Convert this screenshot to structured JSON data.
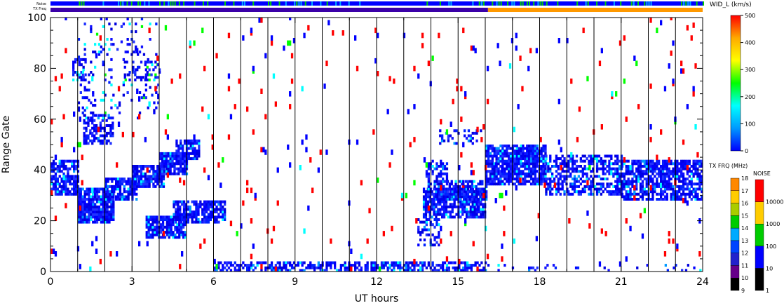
{
  "chart_data": {
    "type": "heatmap",
    "title": "",
    "xlabel": "UT hours",
    "ylabel": "Range Gate",
    "xlim": [
      0,
      24
    ],
    "ylim": [
      0,
      100
    ],
    "x_ticks": [
      "0",
      "3",
      "6",
      "9",
      "12",
      "15",
      "18",
      "21",
      "24"
    ],
    "y_ticks": [
      "0",
      "20",
      "40",
      "60",
      "80",
      "100"
    ],
    "vertical_gridlines_hours": [
      1,
      2,
      3,
      4,
      5,
      6,
      7,
      8,
      9,
      10,
      11,
      12,
      13,
      14,
      15,
      16,
      17,
      18,
      19,
      20,
      21,
      22,
      23
    ],
    "top_bars": {
      "noise_label": "Noise",
      "txfreq_label": "TX Freq",
      "txfreq_segments": [
        {
          "start": 0,
          "end": 16.1,
          "color": "#3a00a8"
        },
        {
          "start": 16.1,
          "end": 24,
          "color": "#ff9900"
        }
      ]
    },
    "main_colorbar": {
      "title": "WID_L (km/s)",
      "range": [
        0,
        500
      ],
      "ticks": [
        "0",
        "100",
        "200",
        "300",
        "400",
        "500"
      ],
      "stops": [
        "#0000ff",
        "#0099ff",
        "#00ffff",
        "#00ff00",
        "#ffff00",
        "#ffaa00",
        "#ff0000"
      ]
    },
    "txfreq_colorbar": {
      "title": "TX FRQ (MHz)",
      "ticks": [
        "9",
        "10",
        "11",
        "12",
        "13",
        "14",
        "15",
        "16",
        "17",
        "18"
      ],
      "colors": [
        "#000000",
        "#66008a",
        "#2222cc",
        "#0044ff",
        "#00aaff",
        "#00cc00",
        "#aacc00",
        "#ffcc00",
        "#ff8800",
        "#ff0000"
      ]
    },
    "noise_colorbar": {
      "title": "NOISE",
      "ticks": [
        "1",
        "10",
        "100",
        "1000",
        "10000"
      ],
      "colors": [
        "#000000",
        "#0000ff",
        "#00cc00",
        "#ffcc00",
        "#ff0000"
      ]
    },
    "bands": [
      {
        "t0": 0.0,
        "t1": 1.0,
        "g0": 30,
        "g1": 44,
        "density": 0.75
      },
      {
        "t0": 0.8,
        "t1": 1.3,
        "g0": 75,
        "g1": 84,
        "density": 0.4
      },
      {
        "t0": 1.0,
        "t1": 2.3,
        "g0": 19,
        "g1": 33,
        "density": 0.85
      },
      {
        "t0": 2.0,
        "t1": 3.2,
        "g0": 28,
        "g1": 37,
        "density": 0.8
      },
      {
        "t0": 1.2,
        "t1": 2.3,
        "g0": 50,
        "g1": 62,
        "density": 0.55
      },
      {
        "t0": 3.0,
        "t1": 4.2,
        "g0": 33,
        "g1": 42,
        "density": 0.85
      },
      {
        "t0": 4.0,
        "t1": 5.0,
        "g0": 38,
        "g1": 47,
        "density": 0.8
      },
      {
        "t0": 4.6,
        "t1": 5.5,
        "g0": 44,
        "g1": 52,
        "density": 0.7
      },
      {
        "t0": 2.7,
        "t1": 4.0,
        "g0": 75,
        "g1": 83,
        "density": 0.3
      },
      {
        "t0": 3.5,
        "t1": 5.0,
        "g0": 13,
        "g1": 22,
        "density": 0.8
      },
      {
        "t0": 4.5,
        "t1": 6.4,
        "g0": 19,
        "g1": 28,
        "density": 0.75
      },
      {
        "t0": 13.7,
        "t1": 16.0,
        "g0": 21,
        "g1": 33,
        "density": 0.8
      },
      {
        "t0": 14.2,
        "t1": 16.0,
        "g0": 28,
        "g1": 36,
        "density": 0.6
      },
      {
        "t0": 13.8,
        "t1": 14.6,
        "g0": 32,
        "g1": 44,
        "density": 0.5
      },
      {
        "t0": 14.3,
        "t1": 15.8,
        "g0": 50,
        "g1": 56,
        "density": 0.25
      },
      {
        "t0": 13.5,
        "t1": 14.3,
        "g0": 10,
        "g1": 22,
        "density": 0.35
      },
      {
        "t0": 16.0,
        "t1": 18.2,
        "g0": 34,
        "g1": 50,
        "density": 0.85
      },
      {
        "t0": 18.2,
        "t1": 21.0,
        "g0": 30,
        "g1": 46,
        "density": 0.55
      },
      {
        "t0": 21.0,
        "t1": 24.0,
        "g0": 28,
        "g1": 44,
        "density": 0.75
      },
      {
        "t0": 6.0,
        "t1": 16.0,
        "g0": 0,
        "g1": 4,
        "density": 0.6
      },
      {
        "t0": 16.0,
        "t1": 24.0,
        "g0": 0,
        "g1": 3,
        "density": 0.1
      },
      {
        "t0": 1.0,
        "t1": 4.0,
        "g0": 60,
        "g1": 100,
        "density": 0.1
      },
      {
        "t0": 0.0,
        "t1": 24.0,
        "g0": 0,
        "g1": 100,
        "density": 0.012
      }
    ]
  }
}
